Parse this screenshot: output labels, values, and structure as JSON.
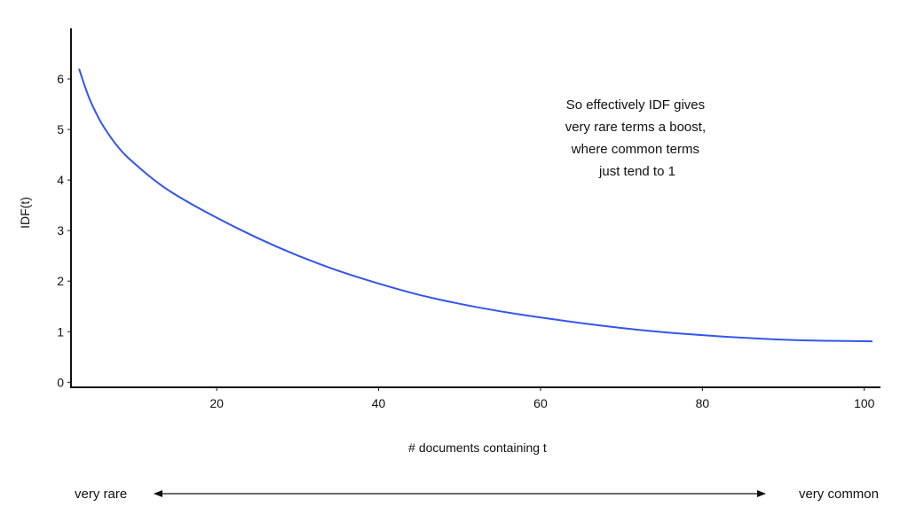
{
  "chart_data": {
    "type": "line",
    "title": "",
    "xlabel": "# documents containing t",
    "ylabel": "IDF(t)",
    "xlim": [
      2,
      102
    ],
    "ylim": [
      -0.1,
      7.0
    ],
    "x_ticks": [
      20,
      40,
      60,
      80,
      100
    ],
    "y_ticks": [
      0,
      1,
      2,
      3,
      4,
      5,
      6
    ],
    "grid": false,
    "legend": "none",
    "series": [
      {
        "color": "#3355ee",
        "x": [
          3,
          4,
          5,
          6,
          8,
          10,
          13,
          16,
          20,
          25,
          30,
          35,
          40,
          45,
          50,
          55,
          60,
          65,
          70,
          75,
          80,
          85,
          90,
          95,
          101
        ],
        "y": [
          6.2,
          5.7,
          5.35,
          5.05,
          4.6,
          4.3,
          3.9,
          3.6,
          3.25,
          2.85,
          2.5,
          2.2,
          1.95,
          1.72,
          1.55,
          1.4,
          1.28,
          1.17,
          1.07,
          0.99,
          0.93,
          0.88,
          0.84,
          0.82,
          0.81
        ]
      }
    ],
    "annotation": [
      "So effectively IDF gives",
      "very rare terms a boost,",
      "where common terms",
      "just tend to 1"
    ],
    "scale_arrow": {
      "left_label": "very rare",
      "right_label": "very common"
    }
  }
}
